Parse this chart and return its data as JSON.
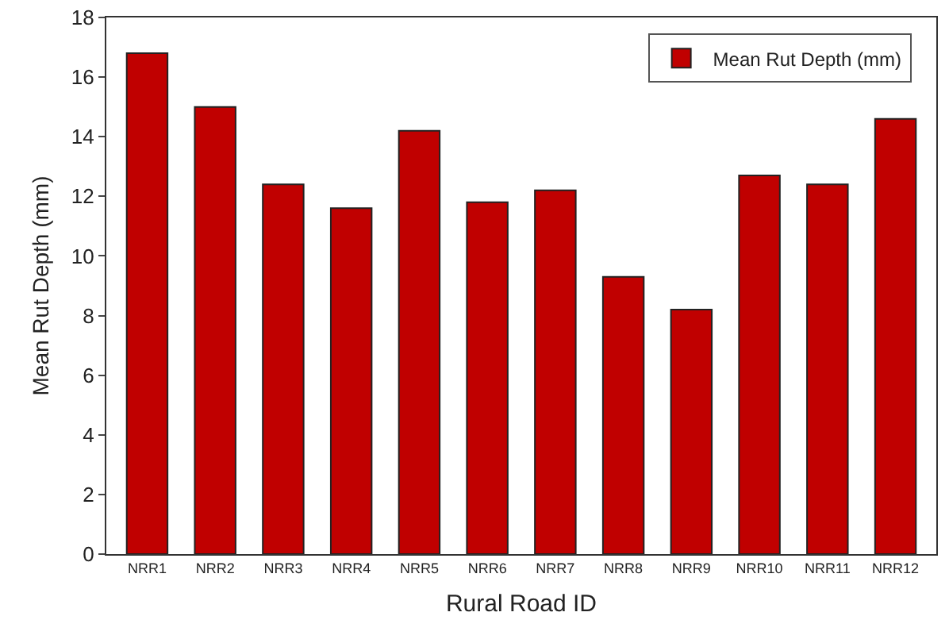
{
  "chart_data": {
    "type": "bar",
    "xlabel": "Rural Road ID",
    "ylabel": "Mean Rut Depth (mm)",
    "categories": [
      "NRR1",
      "NRR2",
      "NRR3",
      "NRR4",
      "NRR5",
      "NRR6",
      "NRR7",
      "NRR8",
      "NRR9",
      "NRR10",
      "NRR11",
      "NRR12"
    ],
    "series": [
      {
        "name": "Mean Rut Depth (mm)",
        "color": "#c00000",
        "values": [
          16.8,
          15.0,
          12.4,
          11.6,
          14.2,
          11.8,
          12.2,
          9.3,
          8.2,
          12.7,
          12.4,
          14.6
        ]
      }
    ],
    "ylim": [
      0,
      18
    ],
    "yticks": [
      0,
      2,
      4,
      6,
      8,
      10,
      12,
      14,
      16,
      18
    ],
    "grid": false,
    "legend": "top right"
  }
}
